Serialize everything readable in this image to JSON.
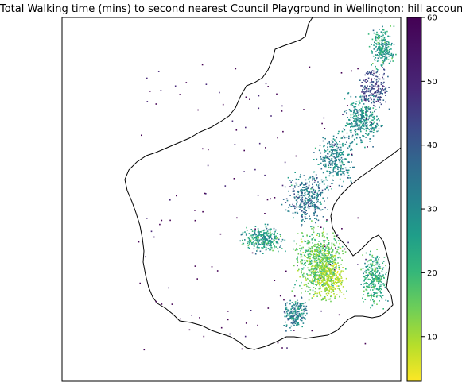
{
  "title": "Total Walking time (mins) to second nearest Council Playground in Wellington: hill accounting",
  "colorbar": {
    "min": 3,
    "max": 60,
    "ticks": [
      "10",
      "20",
      "30",
      "40",
      "50",
      "60"
    ],
    "tick_values": [
      10,
      20,
      30,
      40,
      50,
      60
    ],
    "colormap": "viridis-reversed"
  },
  "colors": {
    "low": "#fde725",
    "high": "#440154",
    "outline": "#000000"
  }
}
